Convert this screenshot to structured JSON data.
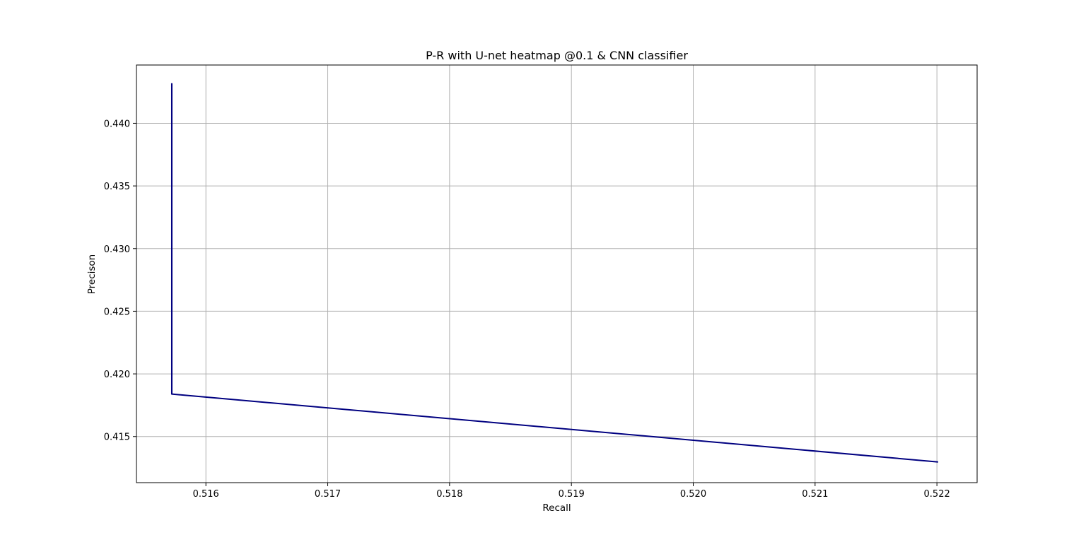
{
  "chart_data": {
    "type": "line",
    "title": "P-R with U-net heatmap @0.1 & CNN classifier",
    "xlabel": "Recall",
    "ylabel": "Precison",
    "xlim": [
      0.51543,
      0.52233
    ],
    "ylim": [
      0.41132,
      0.44465
    ],
    "xticks": [
      0.516,
      0.517,
      0.518,
      0.519,
      0.52,
      0.521,
      0.522
    ],
    "xtick_labels": [
      "0.516",
      "0.517",
      "0.518",
      "0.519",
      "0.520",
      "0.521",
      "0.522"
    ],
    "yticks": [
      0.415,
      0.42,
      0.425,
      0.43,
      0.435,
      0.44
    ],
    "ytick_labels": [
      "0.415",
      "0.420",
      "0.425",
      "0.430",
      "0.435",
      "0.440"
    ],
    "grid": true,
    "series": [
      {
        "color": "#000080",
        "x": [
          0.51572,
          0.51572,
          0.52201
        ],
        "y": [
          0.4432,
          0.41839,
          0.41297
        ]
      }
    ]
  }
}
